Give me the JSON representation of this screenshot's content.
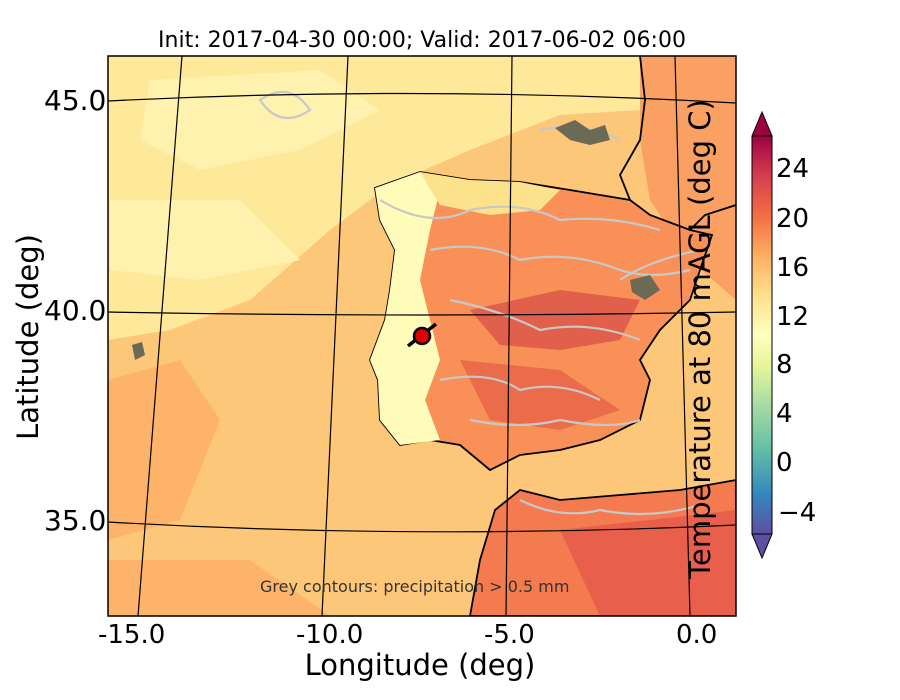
{
  "title": "Init: 2017-04-30 00:00; Valid: 2017-06-02 06:00",
  "xlabel": "Longitude (deg)",
  "ylabel": "Latitude (deg)",
  "x_ticks": [
    "-15.0",
    "-10.0",
    "-5.0",
    "0.0"
  ],
  "y_ticks": [
    "45.0",
    "40.0",
    "35.0"
  ],
  "colorbar": {
    "label": "Temperature at 80 mAGL (deg C)",
    "ticks": [
      "24",
      "20",
      "16",
      "12",
      "8",
      "4",
      "0",
      "−4"
    ],
    "colormap": [
      "#5e4fa2",
      "#3288bd",
      "#66c2a5",
      "#abdda4",
      "#e6f598",
      "#ffffbf",
      "#fee08b",
      "#fdae61",
      "#f46d43",
      "#d53e4f",
      "#9e0142"
    ]
  },
  "note": "Grey contours: precipitation > 0.5 mm",
  "colors": {
    "ocean": "#fdc779",
    "north_ocean": "#fee89a",
    "land_cool": "#fffbb8",
    "land_warm": "#f99058",
    "contours": "#c8c8c8",
    "marker": "#e00000"
  },
  "marker": {
    "lon": -7.6,
    "lat": 39.3
  }
}
